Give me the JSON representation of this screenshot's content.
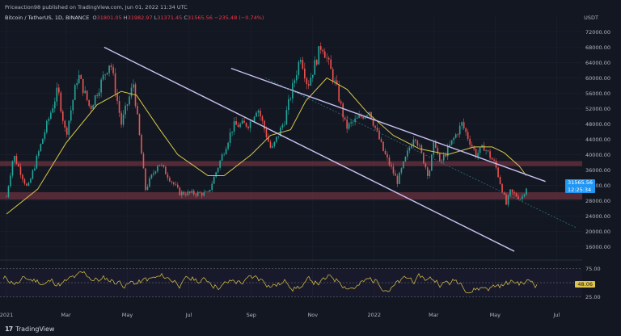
{
  "header": {
    "published": "Priceaction98 published on TradingView.com, Jun 01, 2022 11:34 UTC",
    "symbol": "Bitcoin / TetherUS, 1D, BINANCE",
    "o_label": "O",
    "o_value": "31801.05",
    "h_label": "H",
    "h_value": "31982.97",
    "l_label": "L",
    "l_value": "31371.45",
    "c_label": "C",
    "c_value": "31565.56",
    "change": "−235.48 (−0.74%)"
  },
  "currency": "USDT",
  "last_price": "31565.56",
  "countdown": "12:25:34",
  "rsi_value": "48.06",
  "brand": "TradingView",
  "colors": {
    "background": "#131722",
    "bull": "#26a69a",
    "bear": "#ef5350",
    "ma": "#d8c84a",
    "channel": "#c8c0f0",
    "zone": "#8b3a48",
    "rsi": "#e0c44a"
  },
  "chart_data": {
    "type": "candlestick",
    "y_axis": {
      "scale": "linear",
      "ticks": [
        16000,
        20000,
        24000,
        28000,
        32000,
        36000,
        40000,
        44000,
        48000,
        52000,
        56000,
        60000,
        64000,
        68000,
        72000
      ]
    },
    "x_axis": {
      "ticks": [
        "2021",
        "Mar",
        "May",
        "Jul",
        "Sep",
        "Nov",
        "2022",
        "Mar",
        "May",
        "Jul"
      ]
    },
    "price_path": [
      [
        "2021-01-01",
        29000
      ],
      [
        "2021-01-08",
        40000
      ],
      [
        "2021-01-22",
        31000
      ],
      [
        "2021-02-08",
        46000
      ],
      [
        "2021-02-21",
        57000
      ],
      [
        "2021-03-01",
        45000
      ],
      [
        "2021-03-13",
        61000
      ],
      [
        "2021-03-25",
        52000
      ],
      [
        "2021-04-14",
        64500
      ],
      [
        "2021-04-25",
        48000
      ],
      [
        "2021-05-07",
        58500
      ],
      [
        "2021-05-19",
        31000
      ],
      [
        "2021-06-01",
        38000
      ],
      [
        "2021-06-22",
        30000
      ],
      [
        "2021-07-20",
        29800
      ],
      [
        "2021-08-14",
        47500
      ],
      [
        "2021-08-30",
        48000
      ],
      [
        "2021-09-07",
        52500
      ],
      [
        "2021-09-21",
        41000
      ],
      [
        "2021-10-04",
        49000
      ],
      [
        "2021-10-20",
        66000
      ],
      [
        "2021-10-27",
        58000
      ],
      [
        "2021-11-10",
        69000
      ],
      [
        "2021-11-25",
        57000
      ],
      [
        "2021-12-04",
        47000
      ],
      [
        "2021-12-27",
        51500
      ],
      [
        "2022-01-10",
        41000
      ],
      [
        "2022-01-24",
        33000
      ],
      [
        "2022-02-10",
        45500
      ],
      [
        "2022-02-24",
        34500
      ],
      [
        "2022-03-02",
        44000
      ],
      [
        "2022-03-07",
        37500
      ],
      [
        "2022-03-29",
        48000
      ],
      [
        "2022-04-12",
        40000
      ],
      [
        "2022-04-20",
        42000
      ],
      [
        "2022-05-01",
        37500
      ],
      [
        "2022-05-12",
        27000
      ],
      [
        "2022-05-16",
        30300
      ],
      [
        "2022-05-27",
        28500
      ],
      [
        "2022-06-01",
        31565.56
      ]
    ],
    "moving_average": [
      [
        "2021-01-01",
        24500
      ],
      [
        "2021-02-01",
        31000
      ],
      [
        "2021-03-01",
        43000
      ],
      [
        "2021-04-01",
        53000
      ],
      [
        "2021-04-25",
        56500
      ],
      [
        "2021-05-10",
        55500
      ],
      [
        "2021-06-01",
        47000
      ],
      [
        "2021-06-20",
        40000
      ],
      [
        "2021-07-20",
        34500
      ],
      [
        "2021-08-05",
        34500
      ],
      [
        "2021-09-01",
        40000
      ],
      [
        "2021-09-20",
        45000
      ],
      [
        "2021-10-10",
        46500
      ],
      [
        "2021-10-25",
        54000
      ],
      [
        "2021-11-15",
        60000
      ],
      [
        "2021-12-05",
        57000
      ],
      [
        "2021-12-25",
        51000
      ],
      [
        "2022-01-20",
        45000
      ],
      [
        "2022-02-15",
        41500
      ],
      [
        "2022-03-15",
        40000
      ],
      [
        "2022-04-10",
        42000
      ],
      [
        "2022-04-28",
        42000
      ],
      [
        "2022-05-10",
        40500
      ],
      [
        "2022-05-25",
        37000
      ],
      [
        "2022-06-01",
        34500
      ]
    ],
    "channel_lines": [
      {
        "from": [
          "2021-08-12",
          62500
        ],
        "to": [
          "2022-06-20",
          33000
        ]
      },
      {
        "from": [
          "2021-04-08",
          68000
        ],
        "to": [
          "2022-05-20",
          14800
        ]
      }
    ],
    "support_resistance_zones": [
      [
        28300,
        30200
      ],
      [
        37000,
        38300
      ]
    ],
    "rsi": {
      "period_view": true,
      "levels": [
        25,
        50,
        75
      ],
      "last": 48.06
    }
  }
}
